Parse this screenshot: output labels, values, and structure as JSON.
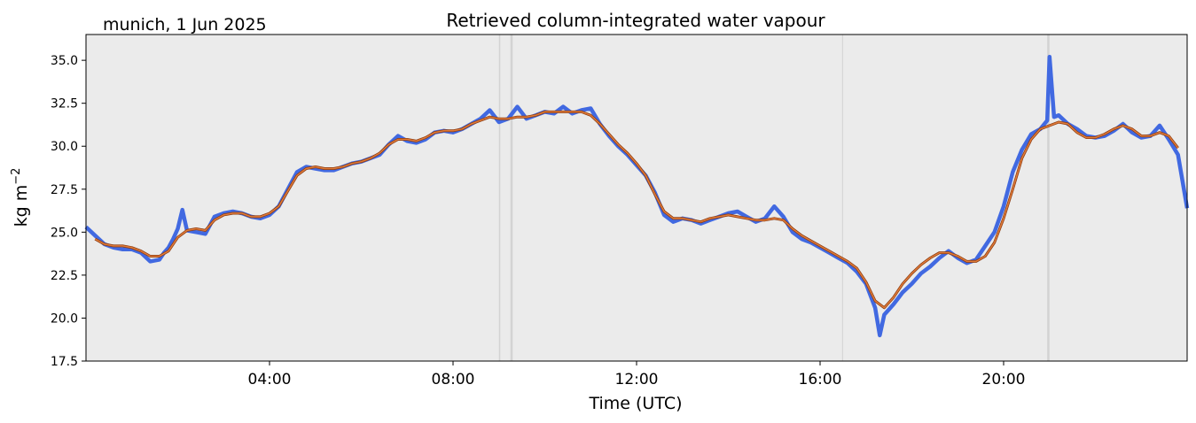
{
  "chart_data": {
    "type": "line",
    "title": "Retrieved column-integrated water vapour",
    "subtitle": "munich, 1 Jun 2025",
    "xlabel": "Time (UTC)",
    "ylabel_main": "kg m",
    "ylabel_sup": "−2",
    "xlim": [
      0,
      24
    ],
    "ylim": [
      17.5,
      36.5
    ],
    "x_ticks": [
      4,
      8,
      12,
      16,
      20
    ],
    "x_tick_labels": [
      "04:00",
      "08:00",
      "12:00",
      "16:00",
      "20:00"
    ],
    "y_ticks": [
      17.5,
      20.0,
      22.5,
      25.0,
      27.5,
      30.0,
      32.5,
      35.0
    ],
    "y_tick_labels": [
      "17.5",
      "20.0",
      "22.5",
      "25.0",
      "27.5",
      "30.0",
      "32.5",
      "35.0"
    ],
    "gaps": [
      {
        "start": 9.0,
        "end": 9.03
      },
      {
        "start": 9.25,
        "end": 9.3
      },
      {
        "start": 16.48,
        "end": 16.5
      },
      {
        "start": 20.95,
        "end": 21.0
      }
    ],
    "series": [
      {
        "role": "raw",
        "color": "#4169e1",
        "x": [
          0.0,
          0.2,
          0.4,
          0.6,
          0.8,
          1.0,
          1.2,
          1.4,
          1.6,
          1.7,
          1.8,
          1.9,
          2.0,
          2.1,
          2.2,
          2.4,
          2.6,
          2.8,
          3.0,
          3.2,
          3.4,
          3.6,
          3.8,
          4.0,
          4.2,
          4.4,
          4.6,
          4.8,
          5.0,
          5.2,
          5.4,
          5.6,
          5.8,
          6.0,
          6.2,
          6.4,
          6.6,
          6.8,
          7.0,
          7.2,
          7.4,
          7.6,
          7.8,
          8.0,
          8.2,
          8.4,
          8.6,
          8.8,
          9.0,
          9.2,
          9.4,
          9.6,
          9.8,
          10.0,
          10.2,
          10.4,
          10.6,
          10.8,
          11.0,
          11.2,
          11.4,
          11.6,
          11.8,
          12.0,
          12.2,
          12.4,
          12.6,
          12.8,
          13.0,
          13.2,
          13.4,
          13.6,
          13.8,
          14.0,
          14.2,
          14.4,
          14.6,
          14.8,
          15.0,
          15.2,
          15.4,
          15.6,
          15.8,
          16.0,
          16.2,
          16.4,
          16.6,
          16.8,
          17.0,
          17.2,
          17.3,
          17.4,
          17.6,
          17.8,
          18.0,
          18.2,
          18.4,
          18.6,
          18.8,
          19.0,
          19.2,
          19.4,
          19.6,
          19.8,
          20.0,
          20.2,
          20.4,
          20.6,
          20.8,
          20.95,
          21.0,
          21.1,
          21.2,
          21.4,
          21.6,
          21.8,
          22.0,
          22.2,
          22.4,
          22.6,
          22.8,
          23.0,
          23.2,
          23.4,
          23.6,
          23.8,
          24.0
        ],
        "values": [
          25.3,
          24.8,
          24.3,
          24.1,
          24.0,
          24.0,
          23.8,
          23.3,
          23.4,
          23.8,
          24.1,
          24.6,
          25.2,
          26.3,
          25.1,
          25.0,
          24.9,
          25.9,
          26.1,
          26.2,
          26.1,
          25.9,
          25.8,
          26.0,
          26.5,
          27.5,
          28.5,
          28.8,
          28.7,
          28.6,
          28.6,
          28.8,
          29.0,
          29.1,
          29.3,
          29.5,
          30.1,
          30.6,
          30.3,
          30.2,
          30.4,
          30.8,
          30.9,
          30.8,
          31.0,
          31.3,
          31.6,
          32.1,
          31.4,
          31.6,
          32.3,
          31.6,
          31.8,
          32.0,
          31.9,
          32.3,
          31.9,
          32.1,
          32.2,
          31.3,
          30.6,
          30.0,
          29.5,
          28.9,
          28.3,
          27.3,
          26.0,
          25.6,
          25.8,
          25.7,
          25.5,
          25.7,
          25.9,
          26.1,
          26.2,
          25.9,
          25.6,
          25.8,
          26.5,
          25.9,
          25.0,
          24.6,
          24.4,
          24.1,
          23.8,
          23.5,
          23.2,
          22.7,
          22.0,
          20.6,
          19.0,
          20.2,
          20.8,
          21.5,
          22.0,
          22.6,
          23.0,
          23.5,
          23.9,
          23.5,
          23.2,
          23.4,
          24.2,
          25.0,
          26.5,
          28.5,
          29.8,
          30.7,
          31.0,
          31.5,
          35.2,
          31.7,
          31.8,
          31.3,
          31.0,
          30.6,
          30.5,
          30.6,
          30.9,
          31.3,
          30.8,
          30.5,
          30.6,
          31.2,
          30.4,
          29.5,
          26.4
        ]
      },
      {
        "role": "smoothed",
        "color": "#e07b39",
        "x": [
          0.2,
          0.4,
          0.6,
          0.8,
          1.0,
          1.2,
          1.4,
          1.6,
          1.8,
          2.0,
          2.2,
          2.4,
          2.6,
          2.8,
          3.0,
          3.2,
          3.4,
          3.6,
          3.8,
          4.0,
          4.2,
          4.4,
          4.6,
          4.8,
          5.0,
          5.2,
          5.4,
          5.6,
          5.8,
          6.0,
          6.2,
          6.4,
          6.6,
          6.8,
          7.0,
          7.2,
          7.4,
          7.6,
          7.8,
          8.0,
          8.2,
          8.4,
          8.6,
          8.8,
          9.0,
          9.2,
          9.4,
          9.6,
          9.8,
          10.0,
          10.2,
          10.4,
          10.6,
          10.8,
          11.0,
          11.2,
          11.4,
          11.6,
          11.8,
          12.0,
          12.2,
          12.4,
          12.6,
          12.8,
          13.0,
          13.2,
          13.4,
          13.6,
          13.8,
          14.0,
          14.2,
          14.4,
          14.6,
          14.8,
          15.0,
          15.2,
          15.4,
          15.6,
          15.8,
          16.0,
          16.2,
          16.4,
          16.6,
          16.8,
          17.0,
          17.2,
          17.4,
          17.6,
          17.8,
          18.0,
          18.2,
          18.4,
          18.6,
          18.8,
          19.0,
          19.2,
          19.4,
          19.6,
          19.8,
          20.0,
          20.2,
          20.4,
          20.6,
          20.8,
          21.0,
          21.2,
          21.4,
          21.6,
          21.8,
          22.0,
          22.2,
          22.4,
          22.6,
          22.8,
          23.0,
          23.2,
          23.4,
          23.6,
          23.8
        ],
        "values": [
          24.6,
          24.3,
          24.2,
          24.2,
          24.1,
          23.9,
          23.6,
          23.6,
          23.9,
          24.7,
          25.1,
          25.2,
          25.1,
          25.7,
          26.0,
          26.1,
          26.1,
          25.9,
          25.9,
          26.1,
          26.5,
          27.4,
          28.3,
          28.7,
          28.8,
          28.7,
          28.7,
          28.8,
          29.0,
          29.1,
          29.3,
          29.6,
          30.1,
          30.4,
          30.4,
          30.3,
          30.5,
          30.8,
          30.9,
          30.9,
          31.0,
          31.3,
          31.5,
          31.7,
          31.6,
          31.6,
          31.7,
          31.7,
          31.8,
          32.0,
          32.0,
          32.0,
          32.0,
          32.0,
          31.8,
          31.3,
          30.7,
          30.1,
          29.6,
          29.0,
          28.3,
          27.2,
          26.2,
          25.8,
          25.8,
          25.7,
          25.6,
          25.8,
          25.9,
          26.0,
          25.9,
          25.8,
          25.7,
          25.7,
          25.8,
          25.7,
          25.2,
          24.8,
          24.5,
          24.2,
          23.9,
          23.6,
          23.3,
          22.9,
          22.1,
          21.0,
          20.6,
          21.2,
          22.0,
          22.6,
          23.1,
          23.5,
          23.8,
          23.8,
          23.6,
          23.3,
          23.3,
          23.6,
          24.4,
          25.8,
          27.5,
          29.3,
          30.4,
          31.0,
          31.2,
          31.4,
          31.3,
          30.8,
          30.5,
          30.5,
          30.7,
          31.0,
          31.2,
          31.0,
          30.6,
          30.6,
          30.8,
          30.6,
          29.9
        ]
      }
    ]
  }
}
